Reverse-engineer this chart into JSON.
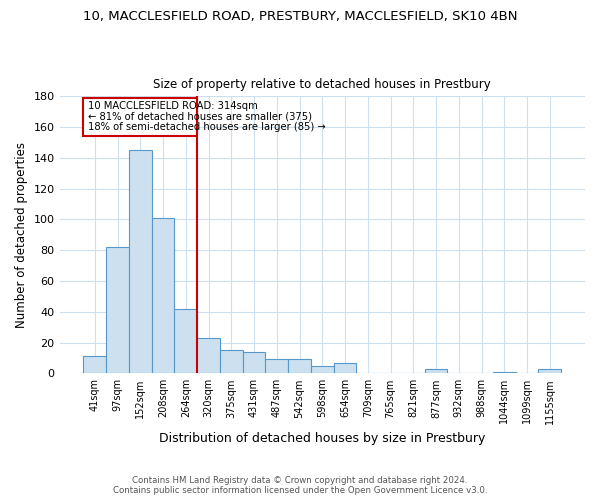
{
  "title_line1": "10, MACCLESFIELD ROAD, PRESTBURY, MACCLESFIELD, SK10 4BN",
  "title_line2": "Size of property relative to detached houses in Prestbury",
  "xlabel": "Distribution of detached houses by size in Prestbury",
  "ylabel": "Number of detached properties",
  "bar_labels": [
    "41sqm",
    "97sqm",
    "152sqm",
    "208sqm",
    "264sqm",
    "320sqm",
    "375sqm",
    "431sqm",
    "487sqm",
    "542sqm",
    "598sqm",
    "654sqm",
    "709sqm",
    "765sqm",
    "821sqm",
    "877sqm",
    "932sqm",
    "988sqm",
    "1044sqm",
    "1099sqm",
    "1155sqm"
  ],
  "bar_values": [
    11,
    82,
    145,
    101,
    42,
    23,
    15,
    14,
    9,
    9,
    5,
    7,
    0,
    0,
    0,
    3,
    0,
    0,
    1,
    0,
    3
  ],
  "bar_color": "#cce0f0",
  "bar_edge_color": "#5599cc",
  "ylim": [
    0,
    180
  ],
  "yticks": [
    0,
    20,
    40,
    60,
    80,
    100,
    120,
    140,
    160,
    180
  ],
  "vline_color": "#cc0000",
  "annotation_text_line1": "10 MACCLESFIELD ROAD: 314sqm",
  "annotation_text_line2": "← 81% of detached houses are smaller (375)",
  "annotation_text_line3": "18% of semi-detached houses are larger (85) →",
  "annotation_box_color": "#cc0000",
  "footer_line1": "Contains HM Land Registry data © Crown copyright and database right 2024.",
  "footer_line2": "Contains public sector information licensed under the Open Government Licence v3.0.",
  "background_color": "#ffffff",
  "grid_color": "#cce0f0"
}
